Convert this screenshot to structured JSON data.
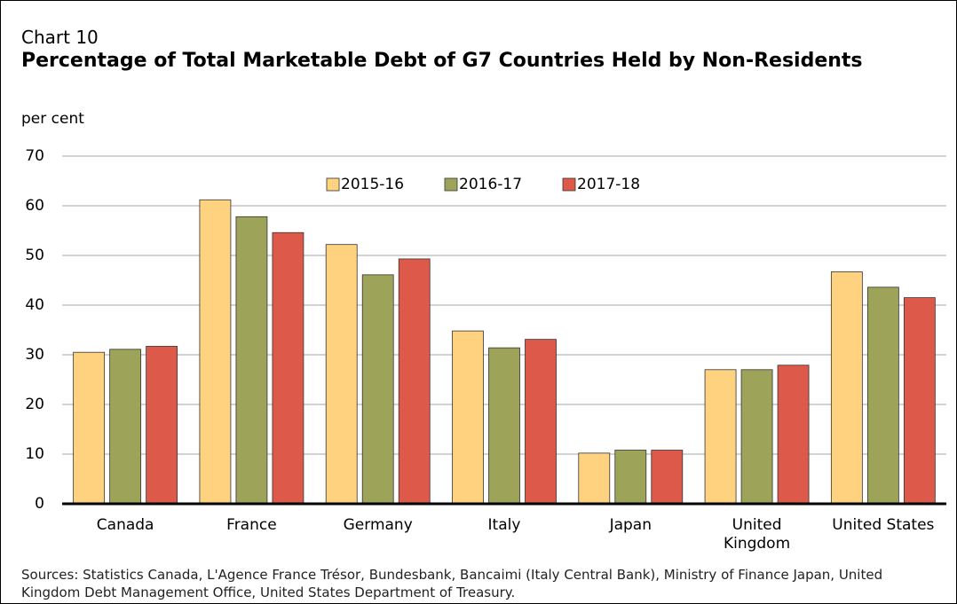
{
  "chart_data": {
    "type": "bar",
    "kicker": "Chart 10",
    "title": "Percentage of Total Marketable Debt of G7 Countries Held by Non-Residents",
    "y_label": "per cent",
    "note": "Sources: Statistics Canada, L'Agence France Trésor, Bundesbank, Bancaimi (Italy Central Bank), Ministry of Finance Japan, United Kingdom Debt Management Office, United States Department of Treasury.",
    "categories": [
      "Canada",
      "France",
      "Germany",
      "Italy",
      "Japan",
      "United\nKingdom",
      "United States"
    ],
    "series": [
      {
        "name": "2015-16",
        "color": "#ffd27f",
        "values": [
          30.5,
          61.2,
          52.2,
          34.8,
          10.2,
          27.0,
          46.7
        ]
      },
      {
        "name": "2016-17",
        "color": "#9ea35a",
        "values": [
          31.1,
          57.8,
          46.1,
          31.4,
          10.8,
          27.0,
          43.6
        ]
      },
      {
        "name": "2017-18",
        "color": "#dd5a4a",
        "values": [
          31.7,
          54.6,
          49.3,
          33.1,
          10.8,
          27.9,
          41.5
        ]
      }
    ],
    "ylim": [
      0,
      70
    ],
    "yticks": [
      0,
      10,
      20,
      30,
      40,
      50,
      60,
      70
    ],
    "grid": true,
    "legend": "top-center"
  }
}
